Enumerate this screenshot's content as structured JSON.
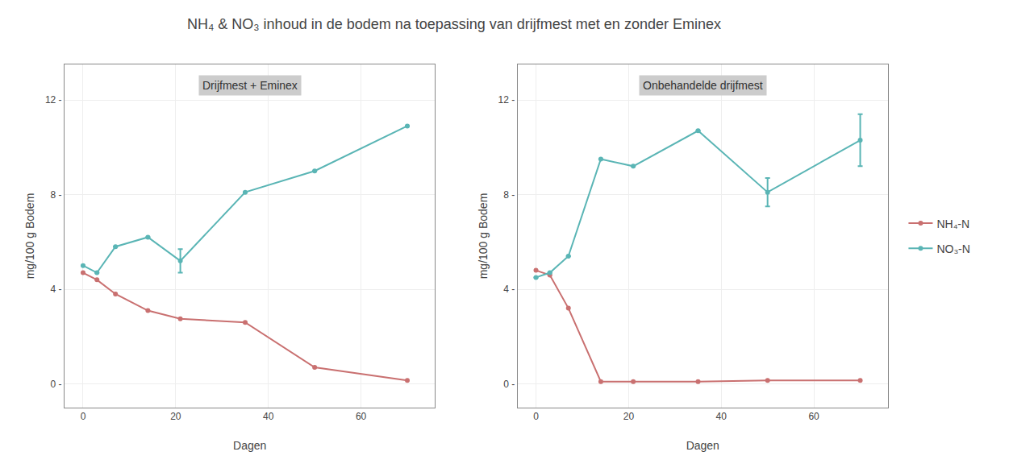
{
  "title": "NH₄ & NO₃ inhoud in de bodem na toepassing van drijfmest met en zonder Eminex",
  "chart_data": [
    {
      "type": "line",
      "title": "Drijfmest + Eminex",
      "x_label": "Dagen",
      "y_label": "mg/100 g Bodem",
      "xlim": [
        -4,
        76
      ],
      "xticks": [
        0,
        20,
        40,
        60
      ],
      "ylim": [
        -1.0,
        13.5
      ],
      "yticks": [
        {
          "value": 0,
          "label": "0 -"
        },
        {
          "value": 4,
          "label": "4 -"
        },
        {
          "value": 8,
          "label": "8 -"
        },
        {
          "value": 12,
          "label": "12 -"
        }
      ],
      "grid": true,
      "legend": "right",
      "series": [
        {
          "name": "NH₄-N",
          "color": "#c97070",
          "marker": "circle",
          "x": [
            0,
            3,
            7,
            14,
            21,
            35,
            50,
            70
          ],
          "values": [
            4.7,
            4.4,
            3.8,
            3.1,
            2.75,
            2.6,
            0.7,
            0.15
          ]
        },
        {
          "name": "NO₃-N",
          "color": "#5ab5b5",
          "marker": "circle",
          "x": [
            0,
            3,
            7,
            14,
            21,
            35,
            50,
            70
          ],
          "values": [
            5.0,
            4.7,
            5.8,
            6.2,
            5.2,
            8.1,
            9.0,
            10.9
          ],
          "errors": [
            0,
            0,
            0,
            0,
            0.5,
            0,
            0,
            0
          ]
        }
      ]
    },
    {
      "type": "line",
      "title": "Onbehandelde drijfmest",
      "x_label": "Dagen",
      "y_label": "mg/100 g Bodem",
      "xlim": [
        -4,
        76
      ],
      "xticks": [
        0,
        20,
        40,
        60
      ],
      "ylim": [
        -1.0,
        13.5
      ],
      "yticks": [
        {
          "value": 0,
          "label": "0 -"
        },
        {
          "value": 4,
          "label": "4 -"
        },
        {
          "value": 8,
          "label": "8 -"
        },
        {
          "value": 12,
          "label": "12 -"
        }
      ],
      "grid": true,
      "legend": "right",
      "series": [
        {
          "name": "NH₄-N",
          "color": "#c97070",
          "marker": "circle",
          "x": [
            0,
            3,
            7,
            14,
            21,
            35,
            50,
            70
          ],
          "values": [
            4.8,
            4.6,
            3.2,
            0.1,
            0.1,
            0.1,
            0.15,
            0.15
          ]
        },
        {
          "name": "NO₃-N",
          "color": "#5ab5b5",
          "marker": "circle",
          "x": [
            0,
            3,
            7,
            14,
            21,
            35,
            50,
            70
          ],
          "values": [
            4.5,
            4.7,
            5.4,
            9.5,
            9.2,
            10.7,
            8.1,
            10.3
          ],
          "errors": [
            0,
            0,
            0,
            0,
            0,
            0,
            0.6,
            1.1
          ]
        }
      ]
    }
  ]
}
